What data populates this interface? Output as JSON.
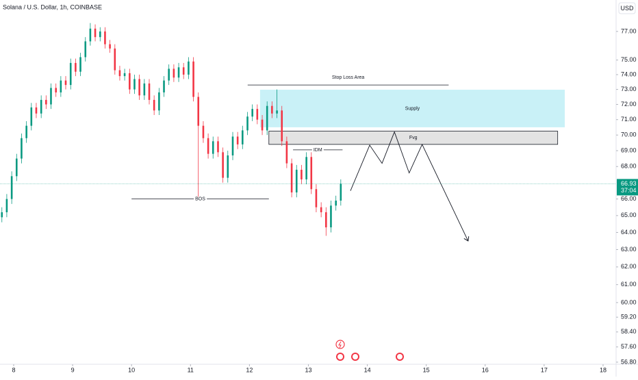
{
  "chart_data": {
    "type": "candlestick",
    "title": "Solana / U.S. Dollar, 1h, COINBASE",
    "currency": "USD",
    "up_color": "#089981",
    "down_color": "#f23645",
    "x": [
      7.8,
      7.883,
      7.967,
      8.05,
      8.133,
      8.217,
      8.3,
      8.383,
      8.467,
      8.55,
      8.633,
      8.717,
      8.8,
      8.883,
      8.967,
      9.05,
      9.133,
      9.217,
      9.3,
      9.383,
      9.467,
      9.55,
      9.633,
      9.717,
      9.8,
      9.883,
      9.967,
      10.05,
      10.133,
      10.217,
      10.3,
      10.383,
      10.467,
      10.55,
      10.633,
      10.717,
      10.8,
      10.883,
      10.967,
      11.05,
      11.133,
      11.217,
      11.3,
      11.383,
      11.467,
      11.55,
      11.633,
      11.717,
      11.8,
      11.883,
      11.967,
      12.05,
      12.133,
      12.217,
      12.3,
      12.383,
      12.467,
      12.55,
      12.633,
      12.717,
      12.8,
      12.883,
      12.967,
      13.05,
      13.133,
      13.217,
      13.3,
      13.383,
      13.467,
      13.55
    ],
    "open": [
      64.9,
      65.2,
      66.0,
      67.4,
      68.5,
      69.8,
      70.6,
      71.8,
      71.4,
      72.3,
      72.0,
      73.1,
      72.8,
      73.6,
      73.3,
      74.8,
      74.2,
      75.2,
      76.3,
      77.2,
      76.6,
      77.0,
      76.1,
      75.8,
      74.3,
      73.9,
      74.1,
      73.0,
      73.7,
      72.6,
      73.4,
      72.3,
      71.6,
      72.8,
      73.6,
      74.4,
      73.8,
      74.5,
      74.0,
      74.9,
      72.5,
      70.6,
      69.8,
      68.8,
      69.6,
      68.9,
      67.3,
      68.7,
      69.9,
      69.4,
      70.3,
      71.2,
      71.7,
      71.0,
      70.3,
      71.9,
      71.4,
      71.6,
      69.6,
      68.2,
      66.4,
      67.8,
      67.2,
      68.6,
      66.6,
      65.5,
      65.2,
      64.3,
      65.6,
      65.9
    ],
    "high": [
      65.5,
      66.3,
      67.7,
      68.8,
      70.1,
      70.9,
      72.1,
      72.1,
      72.6,
      72.6,
      73.4,
      73.4,
      73.9,
      73.9,
      75.1,
      75.1,
      75.5,
      76.6,
      77.6,
      77.5,
      77.3,
      77.3,
      76.4,
      76.1,
      74.6,
      74.4,
      74.4,
      74.0,
      74.0,
      73.7,
      73.7,
      72.6,
      73.1,
      73.9,
      74.7,
      74.7,
      74.8,
      74.8,
      75.2,
      75.2,
      72.8,
      70.9,
      70.1,
      69.9,
      69.9,
      69.2,
      69.0,
      70.2,
      70.2,
      70.6,
      71.5,
      72.0,
      72.0,
      71.3,
      72.2,
      72.2,
      73.0,
      71.9,
      69.9,
      68.5,
      68.1,
      68.1,
      68.9,
      68.9,
      66.9,
      65.8,
      65.5,
      65.9,
      66.2,
      67.2
    ],
    "low": [
      64.6,
      64.9,
      65.7,
      67.1,
      68.2,
      69.5,
      70.3,
      71.1,
      71.1,
      71.7,
      71.7,
      72.5,
      72.5,
      73.0,
      73.0,
      73.9,
      73.9,
      74.9,
      76.0,
      76.3,
      76.3,
      75.8,
      75.5,
      74.0,
      73.6,
      73.6,
      72.7,
      72.7,
      72.3,
      72.3,
      72.0,
      71.3,
      71.3,
      72.5,
      73.3,
      73.5,
      73.5,
      73.7,
      73.7,
      72.2,
      66.0,
      69.5,
      68.5,
      68.5,
      68.6,
      67.0,
      67.0,
      68.4,
      69.1,
      69.1,
      70.0,
      70.9,
      70.7,
      70.0,
      70.0,
      71.1,
      71.1,
      69.3,
      67.9,
      66.1,
      66.1,
      66.9,
      66.9,
      66.3,
      65.2,
      64.9,
      63.8,
      64.0,
      65.3,
      65.6
    ],
    "close": [
      65.2,
      66.0,
      67.4,
      68.5,
      69.8,
      70.6,
      71.8,
      71.4,
      72.3,
      72.0,
      73.1,
      72.8,
      73.6,
      73.3,
      74.8,
      74.2,
      75.2,
      76.3,
      77.2,
      76.6,
      77.0,
      76.1,
      75.8,
      74.3,
      73.9,
      74.1,
      73.0,
      73.7,
      72.6,
      73.4,
      72.3,
      71.6,
      72.8,
      73.6,
      74.4,
      73.8,
      74.5,
      74.0,
      74.9,
      72.5,
      70.6,
      69.8,
      68.8,
      69.6,
      68.9,
      67.3,
      68.7,
      69.9,
      69.4,
      70.3,
      71.2,
      71.7,
      71.0,
      70.3,
      71.9,
      71.4,
      71.6,
      69.6,
      68.2,
      66.4,
      67.8,
      67.2,
      68.6,
      66.6,
      65.5,
      65.2,
      64.3,
      65.6,
      65.9,
      66.93
    ],
    "xlim": [
      7.768,
      18.221
    ],
    "xticks": [
      8,
      9,
      10,
      11,
      12,
      13,
      14,
      15,
      16,
      17,
      18
    ],
    "ylim": [
      56.69,
      79.26
    ],
    "log_scale": true,
    "yticks": [
      {
        "value": 77,
        "label": "77.00"
      },
      {
        "value": 75,
        "label": "75.00"
      },
      {
        "value": 74,
        "label": "74.00"
      },
      {
        "value": 73,
        "label": "73.00"
      },
      {
        "value": 72,
        "label": "72.00"
      },
      {
        "value": 71,
        "label": "71.00"
      },
      {
        "value": 70,
        "label": "70.00"
      },
      {
        "value": 69,
        "label": "69.00"
      },
      {
        "value": 68,
        "label": "68.00"
      },
      {
        "value": 66,
        "label": "66.00"
      },
      {
        "value": 65,
        "label": "65.00"
      },
      {
        "value": 64,
        "label": "64.00"
      },
      {
        "value": 63,
        "label": "63.00"
      },
      {
        "value": 62,
        "label": "62.00"
      },
      {
        "value": 61,
        "label": "61.00"
      },
      {
        "value": 60,
        "label": "60.00"
      },
      {
        "value": 59.2,
        "label": "59.20"
      },
      {
        "value": 58.4,
        "label": "58.40"
      },
      {
        "value": 57.6,
        "label": "57.60"
      },
      {
        "value": 56.8,
        "label": "56.80"
      }
    ],
    "last_price": 66.93,
    "countdown": "37:04",
    "drawings": [
      {
        "kind": "box",
        "label": "Supply",
        "x": [
          12.18,
          17.35
        ],
        "y": [
          70.5,
          72.98
        ],
        "color": "#c9f1f7"
      },
      {
        "kind": "box",
        "label": "Fvg",
        "x": [
          12.33,
          17.23
        ],
        "y": [
          69.4,
          70.25
        ],
        "color": "#e3e3e3"
      },
      {
        "kind": "line",
        "label": "Stop Loss Area",
        "x": [
          11.97,
          15.38
        ],
        "y": [
          73.3,
          73.3
        ],
        "color": "#131722"
      },
      {
        "kind": "line",
        "label": "IDM",
        "x": [
          12.74,
          13.58
        ],
        "y": [
          69.05,
          69.05
        ],
        "color": "#131722"
      },
      {
        "kind": "line",
        "label": "BOS",
        "x": [
          10.0,
          12.33
        ],
        "y": [
          66.0,
          66.0
        ],
        "color": "#131722"
      },
      {
        "kind": "path",
        "x": [
          13.714,
          14.04,
          14.25,
          14.46,
          14.71,
          14.93,
          15.71
        ],
        "y": [
          66.5,
          69.35,
          68.2,
          70.2,
          67.6,
          69.4,
          63.5
        ],
        "color": "#131722"
      }
    ]
  }
}
